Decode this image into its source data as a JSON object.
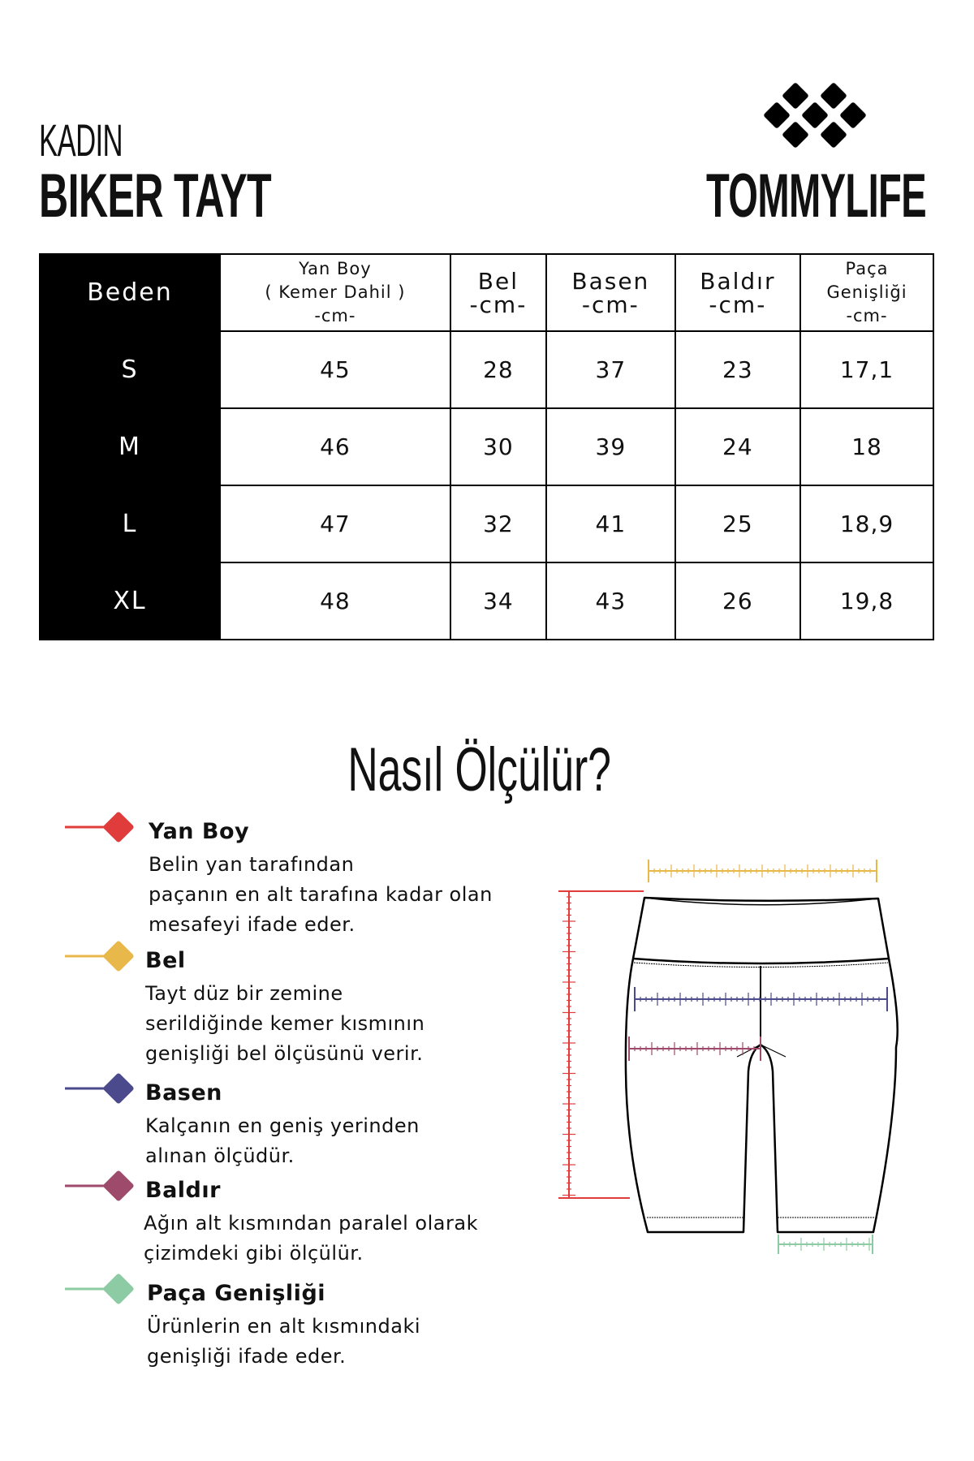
{
  "header": {
    "category": "KADIN",
    "product": "BIKER TAYT",
    "brand": "TOMMYLIFE"
  },
  "table": {
    "size_header": "Beden",
    "columns": [
      {
        "lines": [
          "Yan Boy",
          "( Kemer Dahil )",
          "-cm-"
        ]
      },
      {
        "lines": [
          "Bel",
          "-cm-"
        ]
      },
      {
        "lines": [
          "Basen",
          "-cm-"
        ]
      },
      {
        "lines": [
          "Baldır",
          "-cm-"
        ]
      },
      {
        "lines": [
          "Paça",
          "Genişliği",
          "-cm-"
        ]
      }
    ],
    "rows": [
      {
        "size": "S",
        "values": [
          "45",
          "28",
          "37",
          "23",
          "17,1"
        ]
      },
      {
        "size": "M",
        "values": [
          "46",
          "30",
          "39",
          "24",
          "18"
        ]
      },
      {
        "size": "L",
        "values": [
          "47",
          "32",
          "41",
          "25",
          "18,9"
        ]
      },
      {
        "size": "XL",
        "values": [
          "48",
          "34",
          "43",
          "26",
          "19,8"
        ]
      }
    ]
  },
  "howto": {
    "title": "Nasıl Ölçülür?",
    "items": [
      {
        "title": "Yan Boy",
        "color": "#e03c3c",
        "lines": [
          "Belin yan tarafından",
          "paçanın en alt tarafına kadar olan",
          "mesafeyi ifade eder."
        ]
      },
      {
        "title": "Bel",
        "color": "#e8b84a",
        "lines": [
          "Tayt düz bir zemine",
          "serildiğinde kemer kısmının",
          "genişliği bel ölçüsünü verir."
        ]
      },
      {
        "title": "Basen",
        "color": "#4b4a8c",
        "lines": [
          "Kalçanın en geniş yerinden",
          "alınan ölçüdür."
        ]
      },
      {
        "title": "Baldır",
        "color": "#9e4a6a",
        "lines": [
          "Ağın alt kısmından paralel olarak",
          "çizimdeki gibi ölçülür."
        ]
      },
      {
        "title": "Paça Genişliği",
        "color": "#8ccba3",
        "lines": [
          "Ürünlerin en alt kısmındaki",
          "genişliği ifade eder."
        ]
      }
    ]
  }
}
